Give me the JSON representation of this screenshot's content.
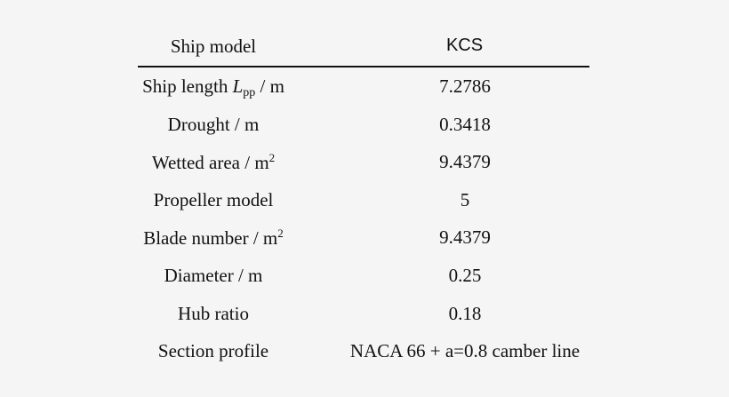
{
  "table": {
    "header": {
      "left": "Ship model",
      "right": "KCS"
    },
    "rows": [
      {
        "label_pre": "Ship length ",
        "label_ital": "L",
        "label_sub": "pp",
        "label_post": " / m",
        "value": "7.2786"
      },
      {
        "label": "Drought / m",
        "value": "0.3418"
      },
      {
        "label": "Wetted area / m",
        "label_sup": "2",
        "value": "9.4379"
      },
      {
        "label": "Propeller model",
        "value": "5"
      },
      {
        "label": "Blade number / m",
        "label_sup": "2",
        "value": "9.4379"
      },
      {
        "label": "Diameter / m",
        "value": "0.25"
      },
      {
        "label": "Hub ratio",
        "value": "0.18"
      },
      {
        "label": "Section profile",
        "value": "NACA 66 + a=0.8 camber line"
      }
    ]
  }
}
